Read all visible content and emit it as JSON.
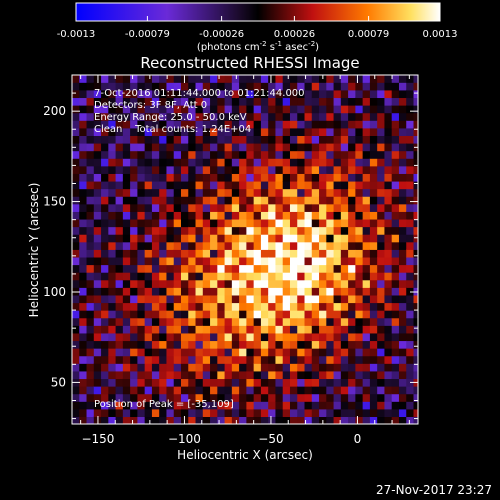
{
  "chart_data": {
    "type": "heatmap",
    "title": "Reconstructed RHESSI Image",
    "xlabel": "Heliocentric X (arcsec)",
    "ylabel": "Heliocentric Y (arcsec)",
    "xlim": [
      -165,
      35
    ],
    "ylim": [
      27,
      220
    ],
    "xticks": [
      -150,
      -100,
      -50,
      0
    ],
    "yticks": [
      50,
      100,
      150,
      200
    ],
    "colorbar": {
      "min": -0.0013,
      "max": 0.0013,
      "ticks": [
        "-0.0013",
        "-0.00079",
        "-0.00026",
        "0.00026",
        "0.00079",
        "0.0013"
      ],
      "tick_values": [
        -0.0013,
        -0.00079,
        -0.00026,
        0.00026,
        0.00079,
        0.0013
      ],
      "units": "(photons cm",
      "units_sup1": "-2",
      "units_mid": " s",
      "units_sup2": "-1",
      "units_mid2": " asec",
      "units_sup3": "-2",
      "units_end": ")",
      "colormap": "blue-purple-black-red-orange-yellow-white"
    },
    "annotations": [
      "7-Oct-2016 01:11:44.000 to 01:21:44.000",
      "Detectors: 3F 8F, Att 0",
      "Energy Range: 25.0 - 50.0 keV",
      "Clean    Total counts: 1.24E+04"
    ],
    "peak_label": "Position of Peak = [-35,109]",
    "peak": [
      -35,
      109
    ],
    "source_center": [
      -55,
      110
    ],
    "grid": false
  },
  "footer": {
    "timestamp": "27-Nov-2017 23:27"
  }
}
